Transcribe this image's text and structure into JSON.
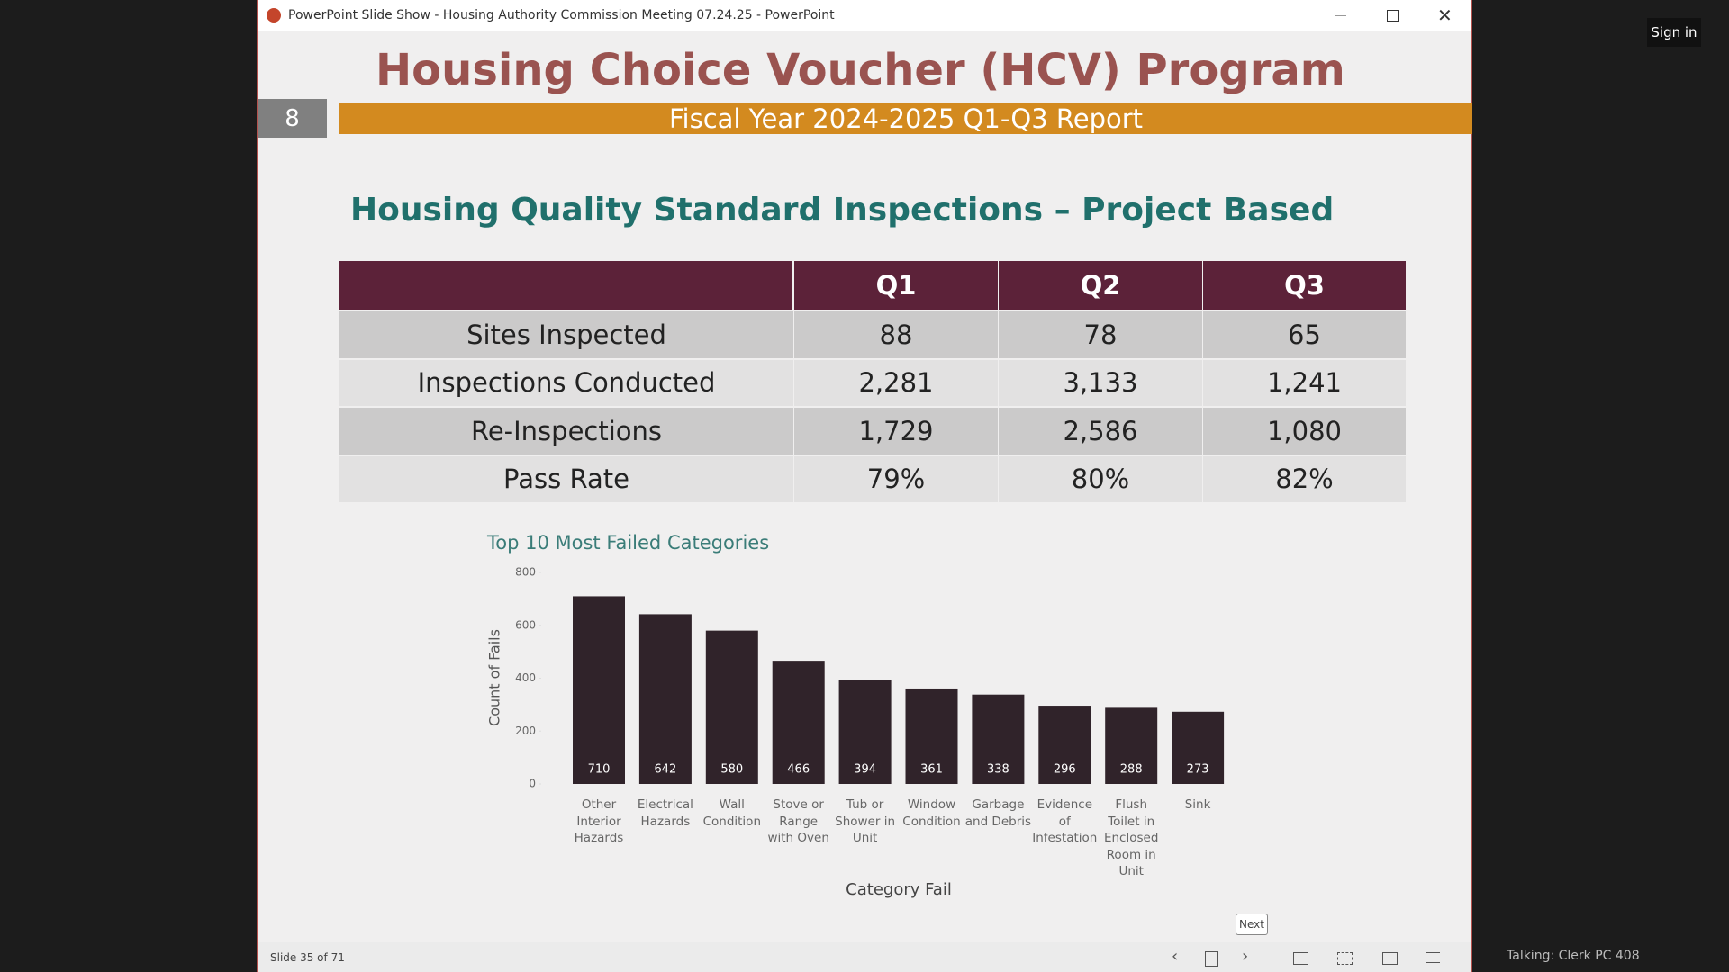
{
  "window": {
    "title": "PowerPoint Slide Show  -  Housing Authority Commission Meeting 07.24.25 - PowerPoint",
    "sign_in": "Sign in",
    "talking": "Talking: Clerk PC 408"
  },
  "slide": {
    "number": "8",
    "title": "Housing Choice Voucher (HCV) Program",
    "subtitle": "Fiscal Year 2024-2025 Q1-Q3 Report",
    "section_title": "Housing Quality Standard Inspections – Project Based"
  },
  "table": {
    "header": [
      "Q1",
      "Q2",
      "Q3"
    ],
    "rows": [
      [
        "Sites Inspected",
        "88",
        "78",
        "65"
      ],
      [
        "Inspections Conducted",
        "2,281",
        "3,133",
        "1,241"
      ],
      [
        "Re-Inspections",
        "1,729",
        "2,586",
        "1,080"
      ],
      [
        "Pass Rate",
        "79%",
        "80%",
        "82%"
      ]
    ]
  },
  "chart_data": {
    "type": "bar",
    "title": "Top 10 Most Failed Categories",
    "x_label": "Category Fail",
    "y_label": "Count of Fails",
    "categories": [
      "Other Interior Hazards",
      "Electrical Hazards",
      "Wall Condition",
      "Stove or Range with Oven",
      "Tub or Shower in Unit",
      "Window Condition",
      "Garbage and Debris",
      "Evidence of Infestation",
      "Flush Toilet in Enclosed Room in Unit",
      "Sink"
    ],
    "values": [
      710,
      642,
      580,
      466,
      394,
      361,
      338,
      296,
      288,
      273
    ],
    "color": "#30232a",
    "ylim": [
      0,
      800
    ],
    "yticks": [
      0,
      200,
      400,
      600,
      800
    ]
  },
  "status": {
    "slide_counter": "Slide 35 of 71",
    "next_tooltip": "Next"
  }
}
